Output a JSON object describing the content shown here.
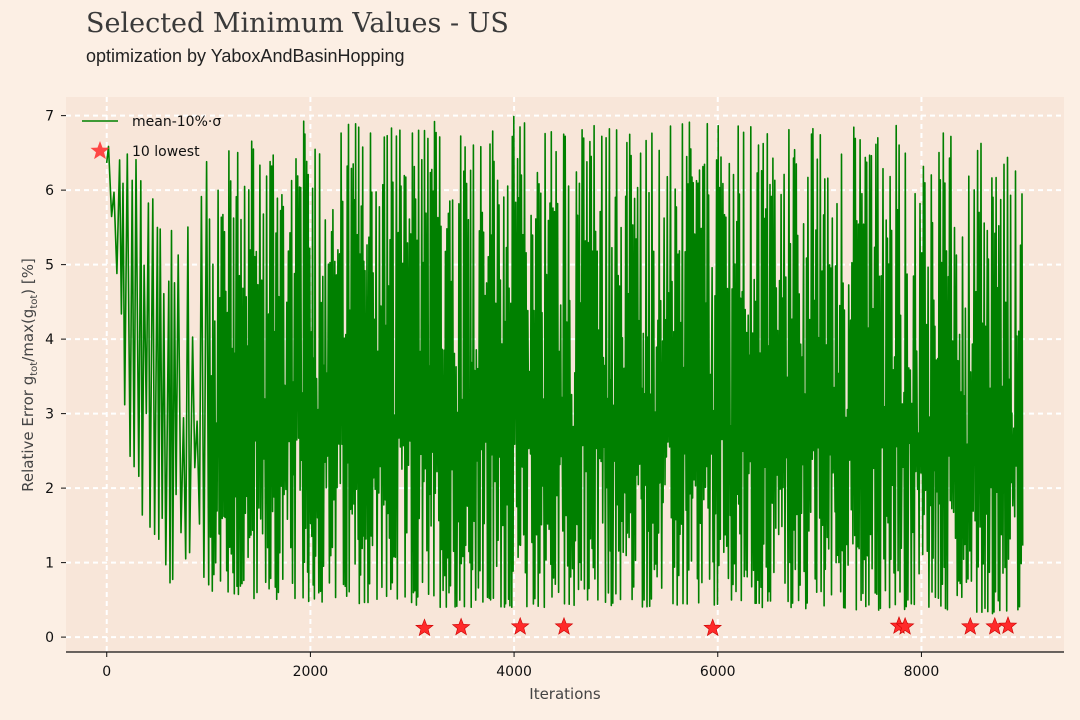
{
  "header": {
    "title": "Selected Minimum Values - US",
    "subtitle": "optimization by YaboxAndBasinHopping"
  },
  "colors": {
    "background": "#fcefe4",
    "plot_area": "#f8e6d9",
    "line": "#008000",
    "star": "#ff2a2a",
    "grid": "#ffffff"
  },
  "chart_data": {
    "type": "line",
    "title": "Selected Minimum Values - US",
    "subtitle": "optimization by YaboxAndBasinHopping",
    "xlabel": "Iterations",
    "ylabel": "Relative Error g_tot/max(g_tot) [%]",
    "xlim": [
      -400,
      9400
    ],
    "ylim": [
      -0.2,
      7.25
    ],
    "xticks": [
      0,
      2000,
      4000,
      6000,
      8000
    ],
    "yticks": [
      0,
      1,
      2,
      3,
      4,
      5,
      6,
      7
    ],
    "xtick_labels": [
      "0",
      "2000",
      "4000",
      "6000",
      "8000"
    ],
    "ytick_labels": [
      "0",
      "1",
      "2",
      "3",
      "4",
      "5",
      "6",
      "7"
    ],
    "grid": true,
    "legend_position": "top-left",
    "series": [
      {
        "name": "mean-10%·σ",
        "kind": "line",
        "x_range": [
          0,
          9000
        ],
        "envelope_low": [
          [
            0,
            6.3
          ],
          [
            200,
            2.6
          ],
          [
            500,
            0.55
          ],
          [
            1000,
            0.6
          ],
          [
            1500,
            0.5
          ],
          [
            2500,
            0.45
          ],
          [
            3000,
            0.4
          ],
          [
            4000,
            0.4
          ],
          [
            6000,
            0.4
          ],
          [
            8000,
            0.35
          ],
          [
            9000,
            0.3
          ]
        ],
        "envelope_high": [
          [
            0,
            6.7
          ],
          [
            200,
            6.7
          ],
          [
            500,
            6.2
          ],
          [
            1000,
            6.4
          ],
          [
            1500,
            6.9
          ],
          [
            2500,
            7.0
          ],
          [
            4000,
            7.0
          ],
          [
            6000,
            6.9
          ],
          [
            8000,
            6.9
          ],
          [
            9000,
            6.5
          ]
        ]
      },
      {
        "name": "10 lowest",
        "kind": "scatter",
        "marker": "star",
        "x": [
          3120,
          3480,
          4060,
          4490,
          5950,
          7780,
          7840,
          8480,
          8720,
          8850
        ],
        "y": [
          0.12,
          0.13,
          0.14,
          0.14,
          0.12,
          0.15,
          0.14,
          0.14,
          0.14,
          0.15
        ]
      }
    ]
  },
  "legend": {
    "line_label": "mean-10%·σ",
    "star_label": "10 lowest"
  },
  "axes": {
    "xlabel": "Iterations",
    "ylabel_main": "Relative Error g",
    "ylabel_sub1": "tot",
    "ylabel_mid": "/max(g",
    "ylabel_sub2": "tot",
    "ylabel_end": ") [%]"
  }
}
